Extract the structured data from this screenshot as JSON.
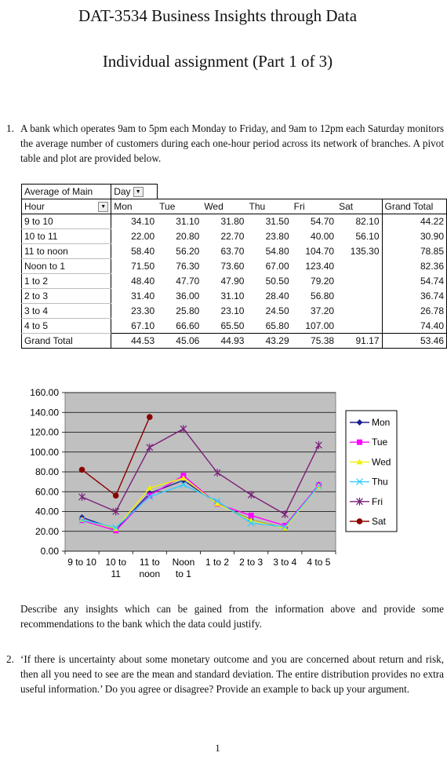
{
  "doc": {
    "title": "DAT-3534 Business Insights through Data",
    "subtitle": "Individual assignment (Part 1 of 3)",
    "q1_num": "1.",
    "q1_text": "A bank which operates 9am to 5pm each Monday to Friday, and 9am to 12pm each Saturday monitors the average number of customers during each one-hour period across its network of branches. A pivot table and plot are provided below.",
    "describe_text": "Describe any insights which can be gained from the information above and provide some recommendations to the bank which the data could justify.",
    "q2_num": "2.",
    "q2_text": "‘If there is uncertainty about some monetary outcome and you are concerned about return and risk, then all you need to see are the mean and standard deviation. The entire distribution provides no extra useful information.’ Do you agree or disagree? Provide an example to back up your argument.",
    "page_number": "1"
  },
  "pivot": {
    "corner_label": "Average of Main",
    "field_label": "Day",
    "row_field_label": "Hour",
    "columns": [
      "Mon",
      "Tue",
      "Wed",
      "Thu",
      "Fri",
      "Sat"
    ],
    "grand_total_label": "Grand Total",
    "rows": [
      {
        "label": "9 to 10",
        "values": [
          "34.10",
          "31.10",
          "31.80",
          "31.50",
          "54.70",
          "82.10"
        ],
        "total": "44.22"
      },
      {
        "label": "10 to 11",
        "values": [
          "22.00",
          "20.80",
          "22.70",
          "23.80",
          "40.00",
          "56.10"
        ],
        "total": "30.90"
      },
      {
        "label": "11 to noon",
        "values": [
          "58.40",
          "56.20",
          "63.70",
          "54.80",
          "104.70",
          "135.30"
        ],
        "total": "78.85"
      },
      {
        "label": "Noon to 1",
        "values": [
          "71.50",
          "76.30",
          "73.60",
          "67.00",
          "123.40",
          ""
        ],
        "total": "82.36"
      },
      {
        "label": "1 to 2",
        "values": [
          "48.40",
          "47.70",
          "47.90",
          "50.50",
          "79.20",
          ""
        ],
        "total": "54.74"
      },
      {
        "label": "2 to 3",
        "values": [
          "31.40",
          "36.00",
          "31.10",
          "28.40",
          "56.80",
          ""
        ],
        "total": "36.74"
      },
      {
        "label": "3 to 4",
        "values": [
          "23.30",
          "25.80",
          "23.10",
          "24.50",
          "37.20",
          ""
        ],
        "total": "26.78"
      },
      {
        "label": "4 to 5",
        "values": [
          "67.10",
          "66.60",
          "65.50",
          "65.80",
          "107.00",
          ""
        ],
        "total": "74.40"
      }
    ],
    "grand_total_row": {
      "label": "Grand Total",
      "values": [
        "44.53",
        "45.06",
        "44.93",
        "43.29",
        "75.38",
        "91.17"
      ],
      "total": "53.46"
    }
  },
  "chart_data": {
    "type": "line",
    "categories": [
      "9 to 10",
      "10 to 11",
      "11 to noon",
      "Noon to 1",
      "1 to 2",
      "2 to 3",
      "3 to 4",
      "4 to 5"
    ],
    "category_lines": [
      [
        "9 to 10"
      ],
      [
        "10 to",
        "11"
      ],
      [
        "11 to",
        "noon"
      ],
      [
        "Noon",
        "to 1"
      ],
      [
        "1 to 2"
      ],
      [
        "2 to 3"
      ],
      [
        "3 to 4"
      ],
      [
        "4 to 5"
      ]
    ],
    "ylim": [
      0,
      160
    ],
    "yticks": [
      "0.00",
      "20.00",
      "40.00",
      "60.00",
      "80.00",
      "100.00",
      "120.00",
      "140.00",
      "160.00"
    ],
    "grid": true,
    "legend": "right",
    "series": [
      {
        "name": "Mon",
        "color": "#1f1f8f",
        "marker": "diamond",
        "values": [
          34.1,
          22.0,
          58.4,
          71.5,
          48.4,
          31.4,
          23.3,
          67.1
        ]
      },
      {
        "name": "Tue",
        "color": "#ff00ff",
        "marker": "square",
        "values": [
          31.1,
          20.8,
          56.2,
          76.3,
          47.7,
          36.0,
          25.8,
          66.6
        ]
      },
      {
        "name": "Wed",
        "color": "#f0f000",
        "marker": "triangle",
        "values": [
          31.8,
          22.7,
          63.7,
          73.6,
          47.9,
          31.1,
          23.1,
          65.5
        ]
      },
      {
        "name": "Thu",
        "color": "#33ccff",
        "marker": "x",
        "values": [
          31.5,
          23.8,
          54.8,
          67.0,
          50.5,
          28.4,
          24.5,
          65.8
        ]
      },
      {
        "name": "Fri",
        "color": "#7a1f7a",
        "marker": "star",
        "values": [
          54.7,
          40.0,
          104.7,
          123.4,
          79.2,
          56.8,
          37.2,
          107.0
        ]
      },
      {
        "name": "Sat",
        "color": "#8b0000",
        "marker": "circle",
        "values": [
          82.1,
          56.1,
          135.3,
          null,
          null,
          null,
          null,
          null
        ]
      }
    ]
  }
}
